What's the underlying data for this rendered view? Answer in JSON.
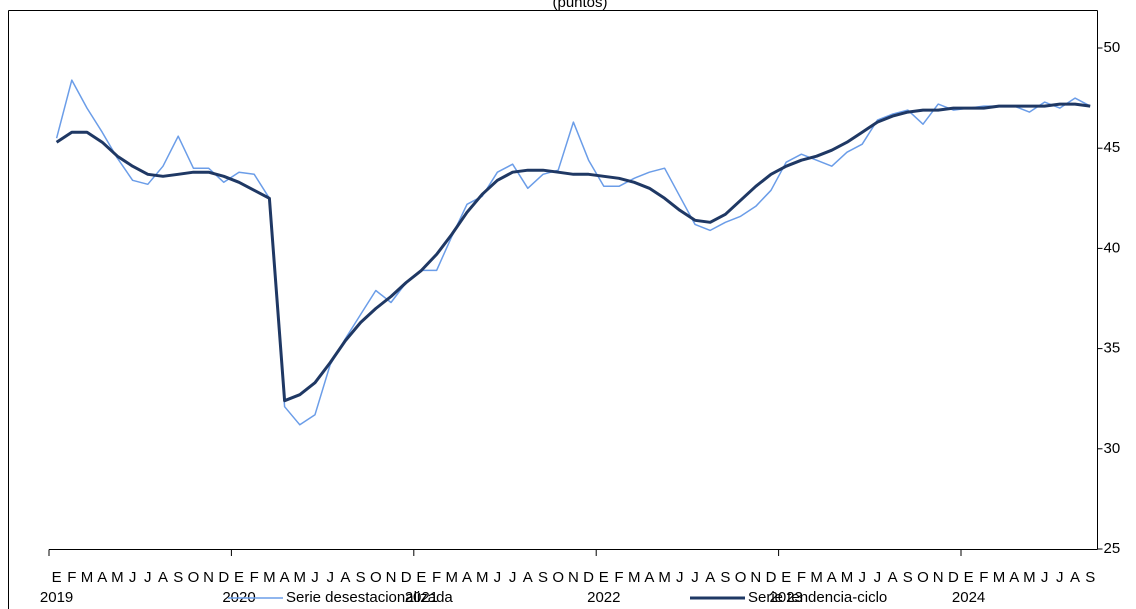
{
  "chart_data": {
    "type": "line",
    "title": "(puntos)",
    "categories": [
      "E",
      "F",
      "M",
      "A",
      "M",
      "J",
      "J",
      "A",
      "S",
      "O",
      "N",
      "D",
      "E",
      "F",
      "M",
      "A",
      "M",
      "J",
      "J",
      "A",
      "S",
      "O",
      "N",
      "D",
      "E",
      "F",
      "M",
      "A",
      "M",
      "J",
      "J",
      "A",
      "S",
      "O",
      "N",
      "D",
      "E",
      "F",
      "M",
      "A",
      "M",
      "J",
      "J",
      "A",
      "S",
      "O",
      "N",
      "D",
      "E",
      "F",
      "M",
      "A",
      "M",
      "J",
      "J",
      "A",
      "S",
      "O",
      "N",
      "D",
      "E",
      "F",
      "M",
      "A",
      "M",
      "J",
      "J",
      "A",
      "S"
    ],
    "years": [
      "2019",
      "2020",
      "2021",
      "2022",
      "2023",
      "2024"
    ],
    "series": [
      {
        "name": "Serie desestacionalizada",
        "color": "#6b9de8",
        "values": [
          45.5,
          48.4,
          47.0,
          45.8,
          44.5,
          43.4,
          43.2,
          44.1,
          45.6,
          44.0,
          44.0,
          43.3,
          43.8,
          43.7,
          42.5,
          32.1,
          31.2,
          31.7,
          34.2,
          35.5,
          36.7,
          37.9,
          37.3,
          38.3,
          38.9,
          38.9,
          40.6,
          42.2,
          42.6,
          43.8,
          44.2,
          43.0,
          43.7,
          43.9,
          46.3,
          44.4,
          43.1,
          43.1,
          43.5,
          43.8,
          44.0,
          42.6,
          41.2,
          40.9,
          41.3,
          41.6,
          42.1,
          42.9,
          44.3,
          44.7,
          44.4,
          44.1,
          44.8,
          45.2,
          46.4,
          46.7,
          46.9,
          46.2,
          47.2,
          46.9,
          47.0,
          47.1,
          47.1,
          47.1,
          46.8,
          47.3,
          47.0,
          47.5,
          47.1
        ]
      },
      {
        "name": "Serie tendencia-ciclo",
        "color": "#1f3864",
        "values": [
          45.3,
          45.8,
          45.8,
          45.3,
          44.6,
          44.1,
          43.7,
          43.6,
          43.7,
          43.8,
          43.8,
          43.6,
          43.3,
          42.9,
          42.5,
          32.4,
          32.7,
          33.3,
          34.3,
          35.4,
          36.3,
          37.0,
          37.6,
          38.3,
          38.9,
          39.7,
          40.7,
          41.8,
          42.7,
          43.4,
          43.8,
          43.9,
          43.9,
          43.8,
          43.7,
          43.7,
          43.6,
          43.5,
          43.3,
          43.0,
          42.5,
          41.9,
          41.4,
          41.3,
          41.7,
          42.4,
          43.1,
          43.7,
          44.1,
          44.4,
          44.6,
          44.9,
          45.3,
          45.8,
          46.3,
          46.6,
          46.8,
          46.9,
          46.9,
          47.0,
          47.0,
          47.0,
          47.1,
          47.1,
          47.1,
          47.1,
          47.2,
          47.2,
          47.1
        ]
      }
    ],
    "ylim": [
      25,
      50
    ],
    "yticks": [
      25,
      30,
      35,
      40,
      45,
      50
    ],
    "y_axis_side": "right"
  }
}
